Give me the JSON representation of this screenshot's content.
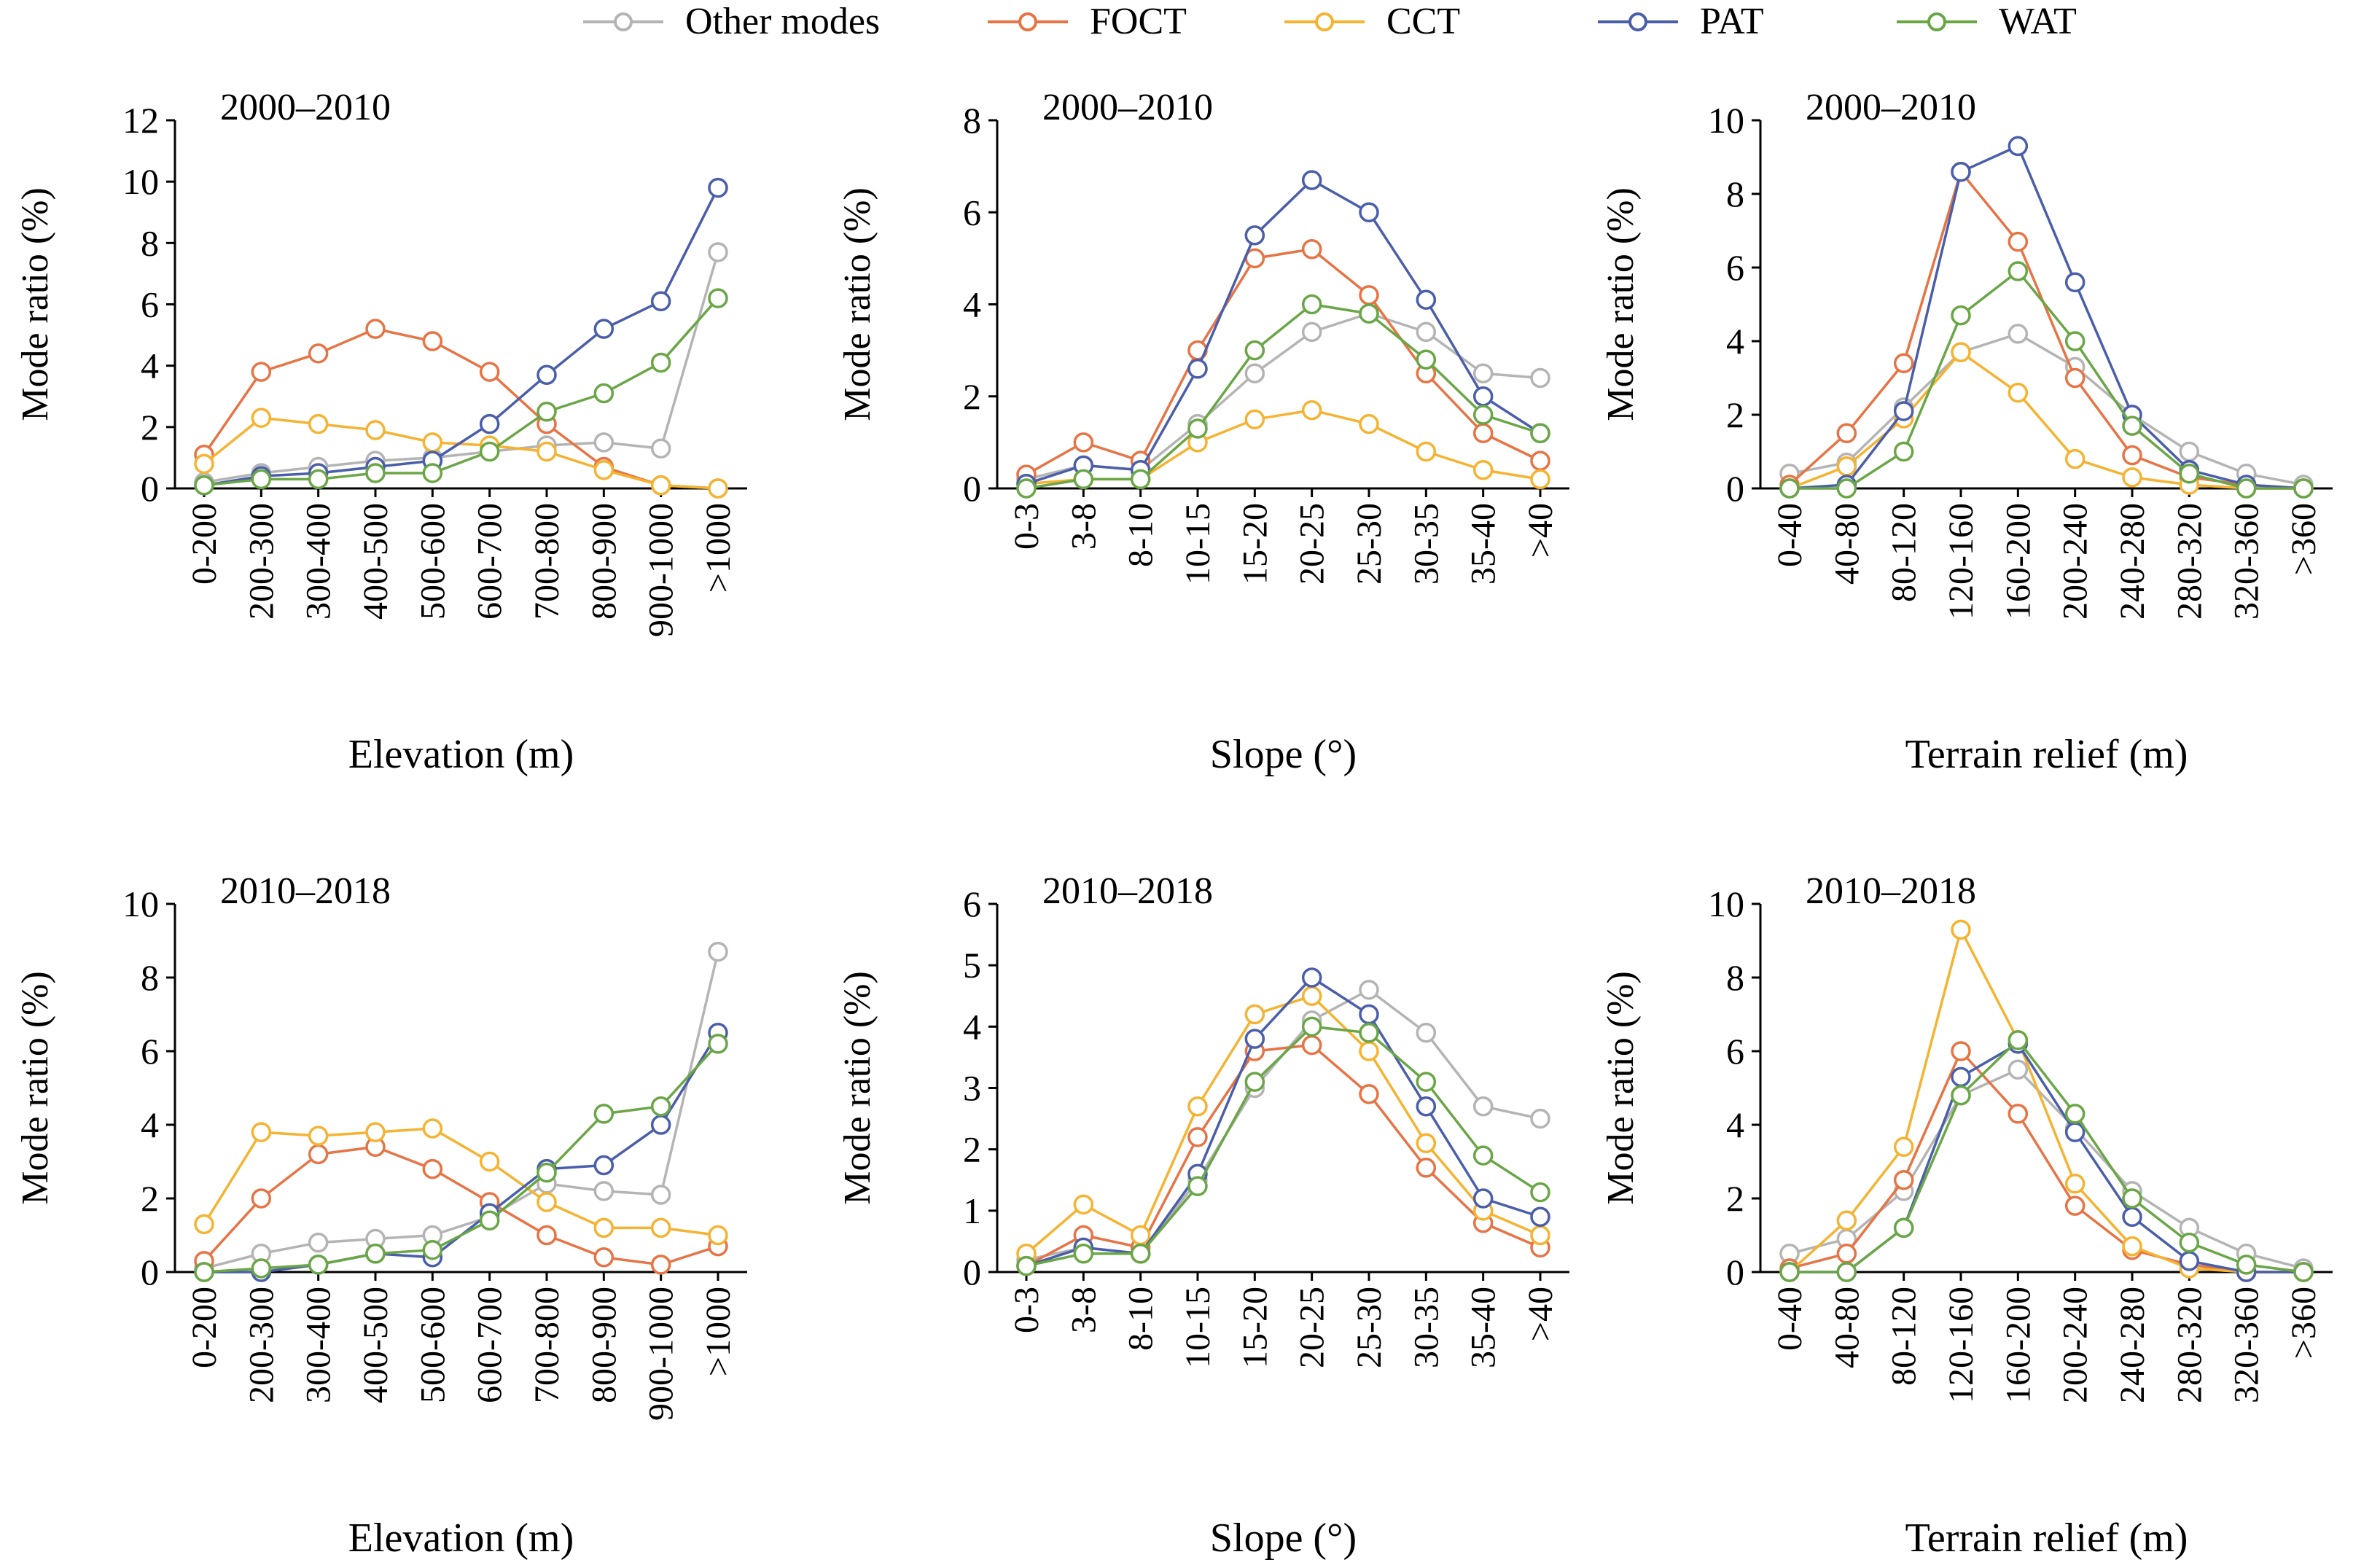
{
  "legend": {
    "position": "top",
    "entries": [
      {
        "name": "Other modes",
        "color": "#b4b4b4"
      },
      {
        "name": "FOCT",
        "color": "#e67445"
      },
      {
        "name": "CCT",
        "color": "#f5b332"
      },
      {
        "name": "PAT",
        "color": "#4a5eaa"
      },
      {
        "name": "WAT",
        "color": "#6aa646"
      }
    ]
  },
  "chart_data": [
    {
      "type": "line",
      "title": "2000–2010",
      "xlabel": "Elevation (m)",
      "ylabel": "Mode ratio (%)",
      "ylim": [
        0,
        12
      ],
      "yticks": [
        0,
        2,
        4,
        6,
        8,
        10,
        12
      ],
      "categories": [
        "0-200",
        "200-300",
        "300-400",
        "400-500",
        "500-600",
        "600-700",
        "700-800",
        "800-900",
        "900-1000",
        ">1000"
      ],
      "series": [
        {
          "name": "Other modes",
          "values": [
            0.2,
            0.5,
            0.7,
            0.9,
            1.0,
            1.2,
            1.4,
            1.5,
            1.3,
            7.7
          ]
        },
        {
          "name": "FOCT",
          "values": [
            1.1,
            3.8,
            4.4,
            5.2,
            4.8,
            3.8,
            2.1,
            0.7,
            0.1,
            0.0
          ]
        },
        {
          "name": "CCT",
          "values": [
            0.8,
            2.3,
            2.1,
            1.9,
            1.5,
            1.4,
            1.2,
            0.6,
            0.1,
            0.0
          ]
        },
        {
          "name": "PAT",
          "values": [
            0.1,
            0.4,
            0.5,
            0.7,
            0.9,
            2.1,
            3.7,
            5.2,
            6.1,
            9.8
          ]
        },
        {
          "name": "WAT",
          "values": [
            0.1,
            0.3,
            0.3,
            0.5,
            0.5,
            1.2,
            2.5,
            3.1,
            4.1,
            6.2
          ]
        }
      ]
    },
    {
      "type": "line",
      "title": "2000–2010",
      "xlabel": "Slope (°)",
      "ylabel": "Mode ratio (%)",
      "ylim": [
        0,
        8
      ],
      "yticks": [
        0,
        2,
        4,
        6,
        8
      ],
      "categories": [
        "0-3",
        "3-8",
        "8-10",
        "10-15",
        "15-20",
        "20-25",
        "25-30",
        "30-35",
        "35-40",
        ">40"
      ],
      "series": [
        {
          "name": "Other modes",
          "values": [
            0.2,
            0.5,
            0.4,
            1.4,
            2.5,
            3.4,
            3.8,
            3.4,
            2.5,
            2.4
          ]
        },
        {
          "name": "FOCT",
          "values": [
            0.3,
            1.0,
            0.6,
            3.0,
            5.0,
            5.2,
            4.2,
            2.5,
            1.2,
            0.6
          ]
        },
        {
          "name": "CCT",
          "values": [
            0.1,
            0.2,
            0.2,
            1.0,
            1.5,
            1.7,
            1.4,
            0.8,
            0.4,
            0.2
          ]
        },
        {
          "name": "PAT",
          "values": [
            0.1,
            0.5,
            0.4,
            2.6,
            5.5,
            6.7,
            6.0,
            4.1,
            2.0,
            1.2
          ]
        },
        {
          "name": "WAT",
          "values": [
            0.0,
            0.2,
            0.2,
            1.3,
            3.0,
            4.0,
            3.8,
            2.8,
            1.6,
            1.2
          ]
        }
      ]
    },
    {
      "type": "line",
      "title": "2000–2010",
      "xlabel": "Terrain relief (m)",
      "ylabel": "Mode ratio (%)",
      "ylim": [
        0,
        10
      ],
      "yticks": [
        0,
        2,
        4,
        6,
        8,
        10
      ],
      "categories": [
        "0-40",
        "40-80",
        "80-120",
        "120-160",
        "160-200",
        "200-240",
        "240-280",
        "280-320",
        "320-360",
        ">360"
      ],
      "series": [
        {
          "name": "Other modes",
          "values": [
            0.4,
            0.7,
            2.2,
            3.7,
            4.2,
            3.3,
            2.0,
            1.0,
            0.4,
            0.1
          ]
        },
        {
          "name": "FOCT",
          "values": [
            0.1,
            1.5,
            3.4,
            8.6,
            6.7,
            3.0,
            0.9,
            0.3,
            0.1,
            0.0
          ]
        },
        {
          "name": "CCT",
          "values": [
            0.0,
            0.6,
            1.9,
            3.7,
            2.6,
            0.8,
            0.3,
            0.1,
            0.0,
            0.0
          ]
        },
        {
          "name": "PAT",
          "values": [
            0.0,
            0.1,
            2.1,
            8.6,
            9.3,
            5.6,
            2.0,
            0.5,
            0.1,
            0.0
          ]
        },
        {
          "name": "WAT",
          "values": [
            0.0,
            0.0,
            1.0,
            4.7,
            5.9,
            4.0,
            1.7,
            0.4,
            0.0,
            0.0
          ]
        }
      ]
    },
    {
      "type": "line",
      "title": "2010–2018",
      "xlabel": "Elevation (m)",
      "ylabel": "Mode ratio (%)",
      "ylim": [
        0,
        10
      ],
      "yticks": [
        0,
        2,
        4,
        6,
        8,
        10
      ],
      "categories": [
        "0-200",
        "200-300",
        "300-400",
        "400-500",
        "500-600",
        "600-700",
        "700-800",
        "800-900",
        "900-1000",
        ">1000"
      ],
      "series": [
        {
          "name": "Other modes",
          "values": [
            0.1,
            0.5,
            0.8,
            0.9,
            1.0,
            1.5,
            2.4,
            2.2,
            2.1,
            8.7
          ]
        },
        {
          "name": "FOCT",
          "values": [
            0.3,
            2.0,
            3.2,
            3.4,
            2.8,
            1.9,
            1.0,
            0.4,
            0.2,
            0.7
          ]
        },
        {
          "name": "CCT",
          "values": [
            1.3,
            3.8,
            3.7,
            3.8,
            3.9,
            3.0,
            1.9,
            1.2,
            1.2,
            1.0
          ]
        },
        {
          "name": "PAT",
          "values": [
            0.0,
            0.0,
            0.2,
            0.5,
            0.4,
            1.6,
            2.8,
            2.9,
            4.0,
            6.5
          ]
        },
        {
          "name": "WAT",
          "values": [
            0.0,
            0.1,
            0.2,
            0.5,
            0.6,
            1.4,
            2.7,
            4.3,
            4.5,
            6.2
          ]
        }
      ]
    },
    {
      "type": "line",
      "title": "2010–2018",
      "xlabel": "Slope (°)",
      "ylabel": "Mode ratio (%)",
      "ylim": [
        0,
        6
      ],
      "yticks": [
        0,
        1,
        2,
        3,
        4,
        5,
        6
      ],
      "categories": [
        "0-3",
        "3-8",
        "8-10",
        "10-15",
        "15-20",
        "20-25",
        "25-30",
        "30-35",
        "35-40",
        ">40"
      ],
      "series": [
        {
          "name": "Other modes",
          "values": [
            0.2,
            0.4,
            0.3,
            1.5,
            3.0,
            4.1,
            4.6,
            3.9,
            2.7,
            2.5
          ]
        },
        {
          "name": "FOCT",
          "values": [
            0.1,
            0.6,
            0.4,
            2.2,
            3.6,
            3.7,
            2.9,
            1.7,
            0.8,
            0.4
          ]
        },
        {
          "name": "CCT",
          "values": [
            0.3,
            1.1,
            0.6,
            2.7,
            4.2,
            4.5,
            3.6,
            2.1,
            1.0,
            0.6
          ]
        },
        {
          "name": "PAT",
          "values": [
            0.1,
            0.4,
            0.3,
            1.6,
            3.8,
            4.8,
            4.2,
            2.7,
            1.2,
            0.9
          ]
        },
        {
          "name": "WAT",
          "values": [
            0.1,
            0.3,
            0.3,
            1.4,
            3.1,
            4.0,
            3.9,
            3.1,
            1.9,
            1.3
          ]
        }
      ]
    },
    {
      "type": "line",
      "title": "2010–2018",
      "xlabel": "Terrain relief (m)",
      "ylabel": "Mode ratio (%)",
      "ylim": [
        0,
        10
      ],
      "yticks": [
        0,
        2,
        4,
        6,
        8,
        10
      ],
      "categories": [
        "0-40",
        "40-80",
        "80-120",
        "120-160",
        "160-200",
        "200-240",
        "240-280",
        "280-320",
        "320-360",
        ">360"
      ],
      "series": [
        {
          "name": "Other modes",
          "values": [
            0.5,
            0.9,
            2.2,
            4.8,
            5.5,
            3.9,
            2.2,
            1.2,
            0.5,
            0.1
          ]
        },
        {
          "name": "FOCT",
          "values": [
            0.1,
            0.5,
            2.5,
            6.0,
            4.3,
            1.8,
            0.6,
            0.2,
            0.0,
            0.0
          ]
        },
        {
          "name": "CCT",
          "values": [
            0.0,
            1.4,
            3.4,
            9.3,
            6.3,
            2.4,
            0.7,
            0.1,
            0.0,
            0.0
          ]
        },
        {
          "name": "PAT",
          "values": [
            0.0,
            0.0,
            1.2,
            5.3,
            6.2,
            3.8,
            1.5,
            0.3,
            0.0,
            0.0
          ]
        },
        {
          "name": "WAT",
          "values": [
            0.0,
            0.0,
            1.2,
            4.8,
            6.3,
            4.3,
            2.0,
            0.8,
            0.2,
            0.0
          ]
        }
      ]
    }
  ]
}
